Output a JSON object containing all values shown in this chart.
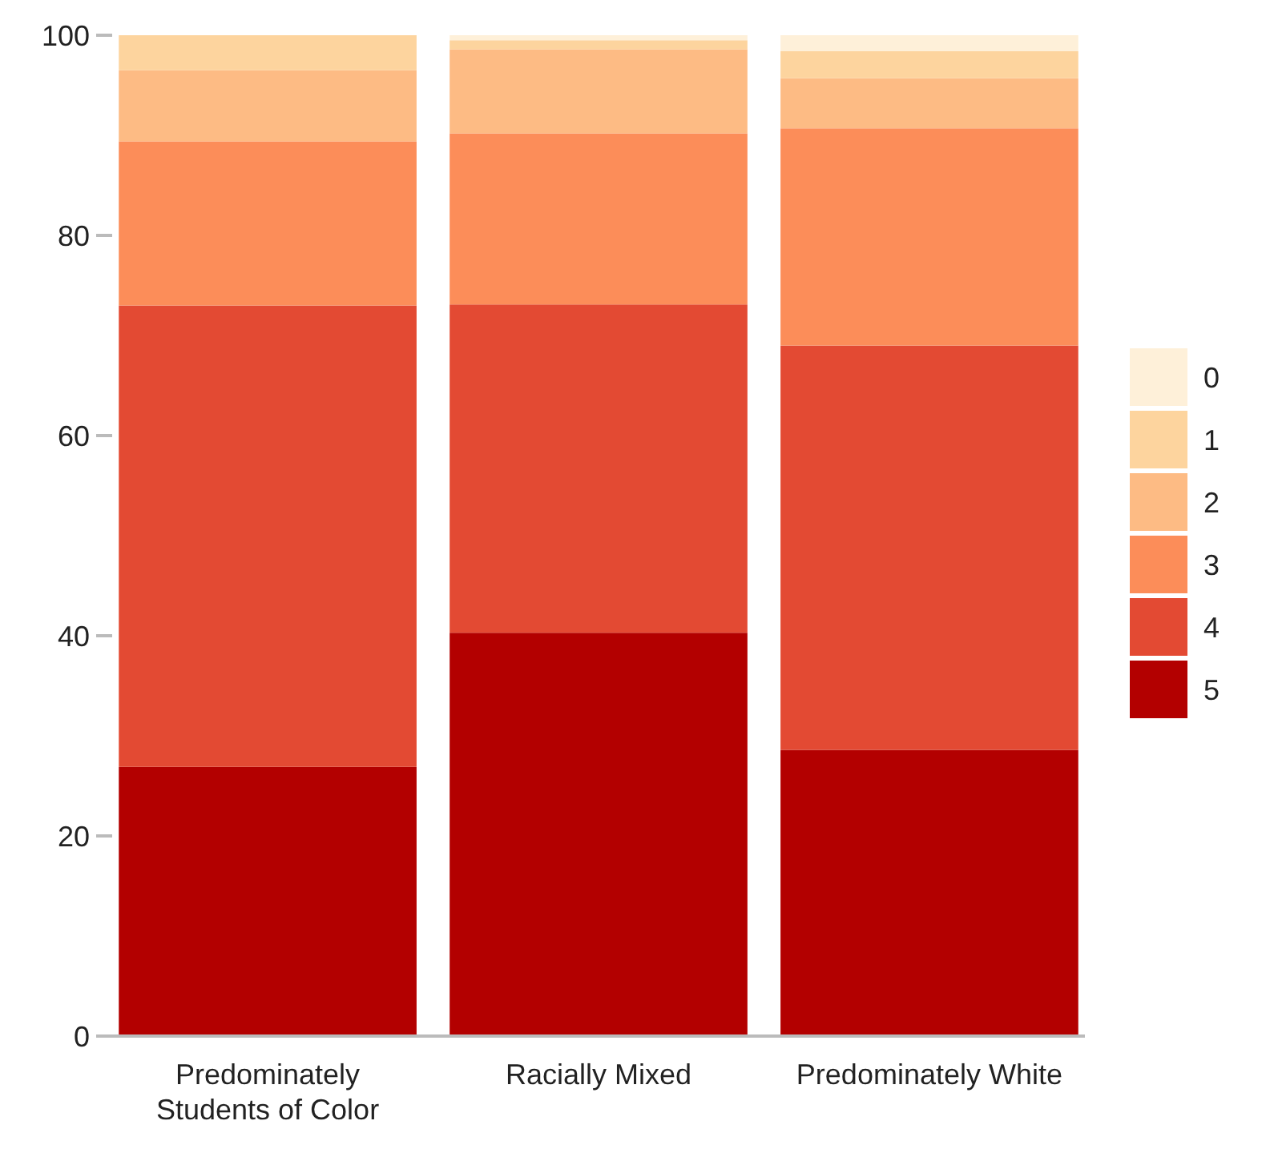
{
  "chart_data": {
    "type": "bar",
    "stacked": true,
    "categories": [
      "Predominately Students of Color",
      "Racially Mixed",
      "Predominately White"
    ],
    "series": [
      {
        "name": "5",
        "color": "#b30000",
        "values": [
          26.9,
          40.3,
          28.6
        ]
      },
      {
        "name": "4",
        "color": "#e34a33",
        "values": [
          46.1,
          32.8,
          40.4
        ]
      },
      {
        "name": "3",
        "color": "#fc8d59",
        "values": [
          16.4,
          17.1,
          21.7
        ]
      },
      {
        "name": "2",
        "color": "#fdbb84",
        "values": [
          7.1,
          8.4,
          5.0
        ]
      },
      {
        "name": "1",
        "color": "#fdd49e",
        "values": [
          3.5,
          0.9,
          2.7
        ]
      },
      {
        "name": "0",
        "color": "#fef0d9",
        "values": [
          0,
          0.5,
          1.6
        ]
      }
    ],
    "ylim": [
      0,
      100
    ],
    "yticks": [
      0,
      20,
      40,
      60,
      80,
      100
    ],
    "legend": "right"
  }
}
